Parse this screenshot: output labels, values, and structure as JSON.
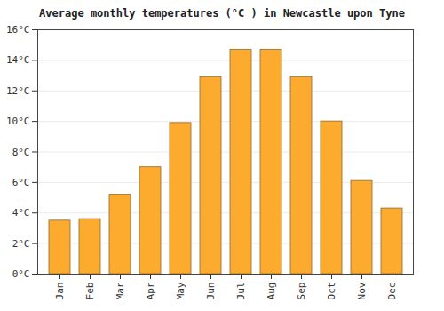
{
  "chart_data": {
    "type": "bar",
    "title": "Average monthly temperatures (°C ) in Newcastle upon Tyne",
    "categories": [
      "Jan",
      "Feb",
      "Mar",
      "Apr",
      "May",
      "Jun",
      "Jul",
      "Aug",
      "Sep",
      "Oct",
      "Nov",
      "Dec"
    ],
    "values": [
      3.5,
      3.6,
      5.2,
      7.0,
      9.9,
      12.9,
      14.7,
      14.7,
      12.9,
      10.0,
      6.1,
      4.3
    ],
    "color": "#fdab2f",
    "ylim": [
      0,
      16
    ],
    "yticks": [
      {
        "value": 0,
        "label": "0°C"
      },
      {
        "value": 2,
        "label": "2°C"
      },
      {
        "value": 4,
        "label": "4°C"
      },
      {
        "value": 6,
        "label": "6°C"
      },
      {
        "value": 8,
        "label": "8°C"
      },
      {
        "value": 10,
        "label": "10°C"
      },
      {
        "value": 12,
        "label": "12°C"
      },
      {
        "value": 14,
        "label": "14°C"
      },
      {
        "value": 16,
        "label": "16°C"
      }
    ],
    "grid": true
  }
}
